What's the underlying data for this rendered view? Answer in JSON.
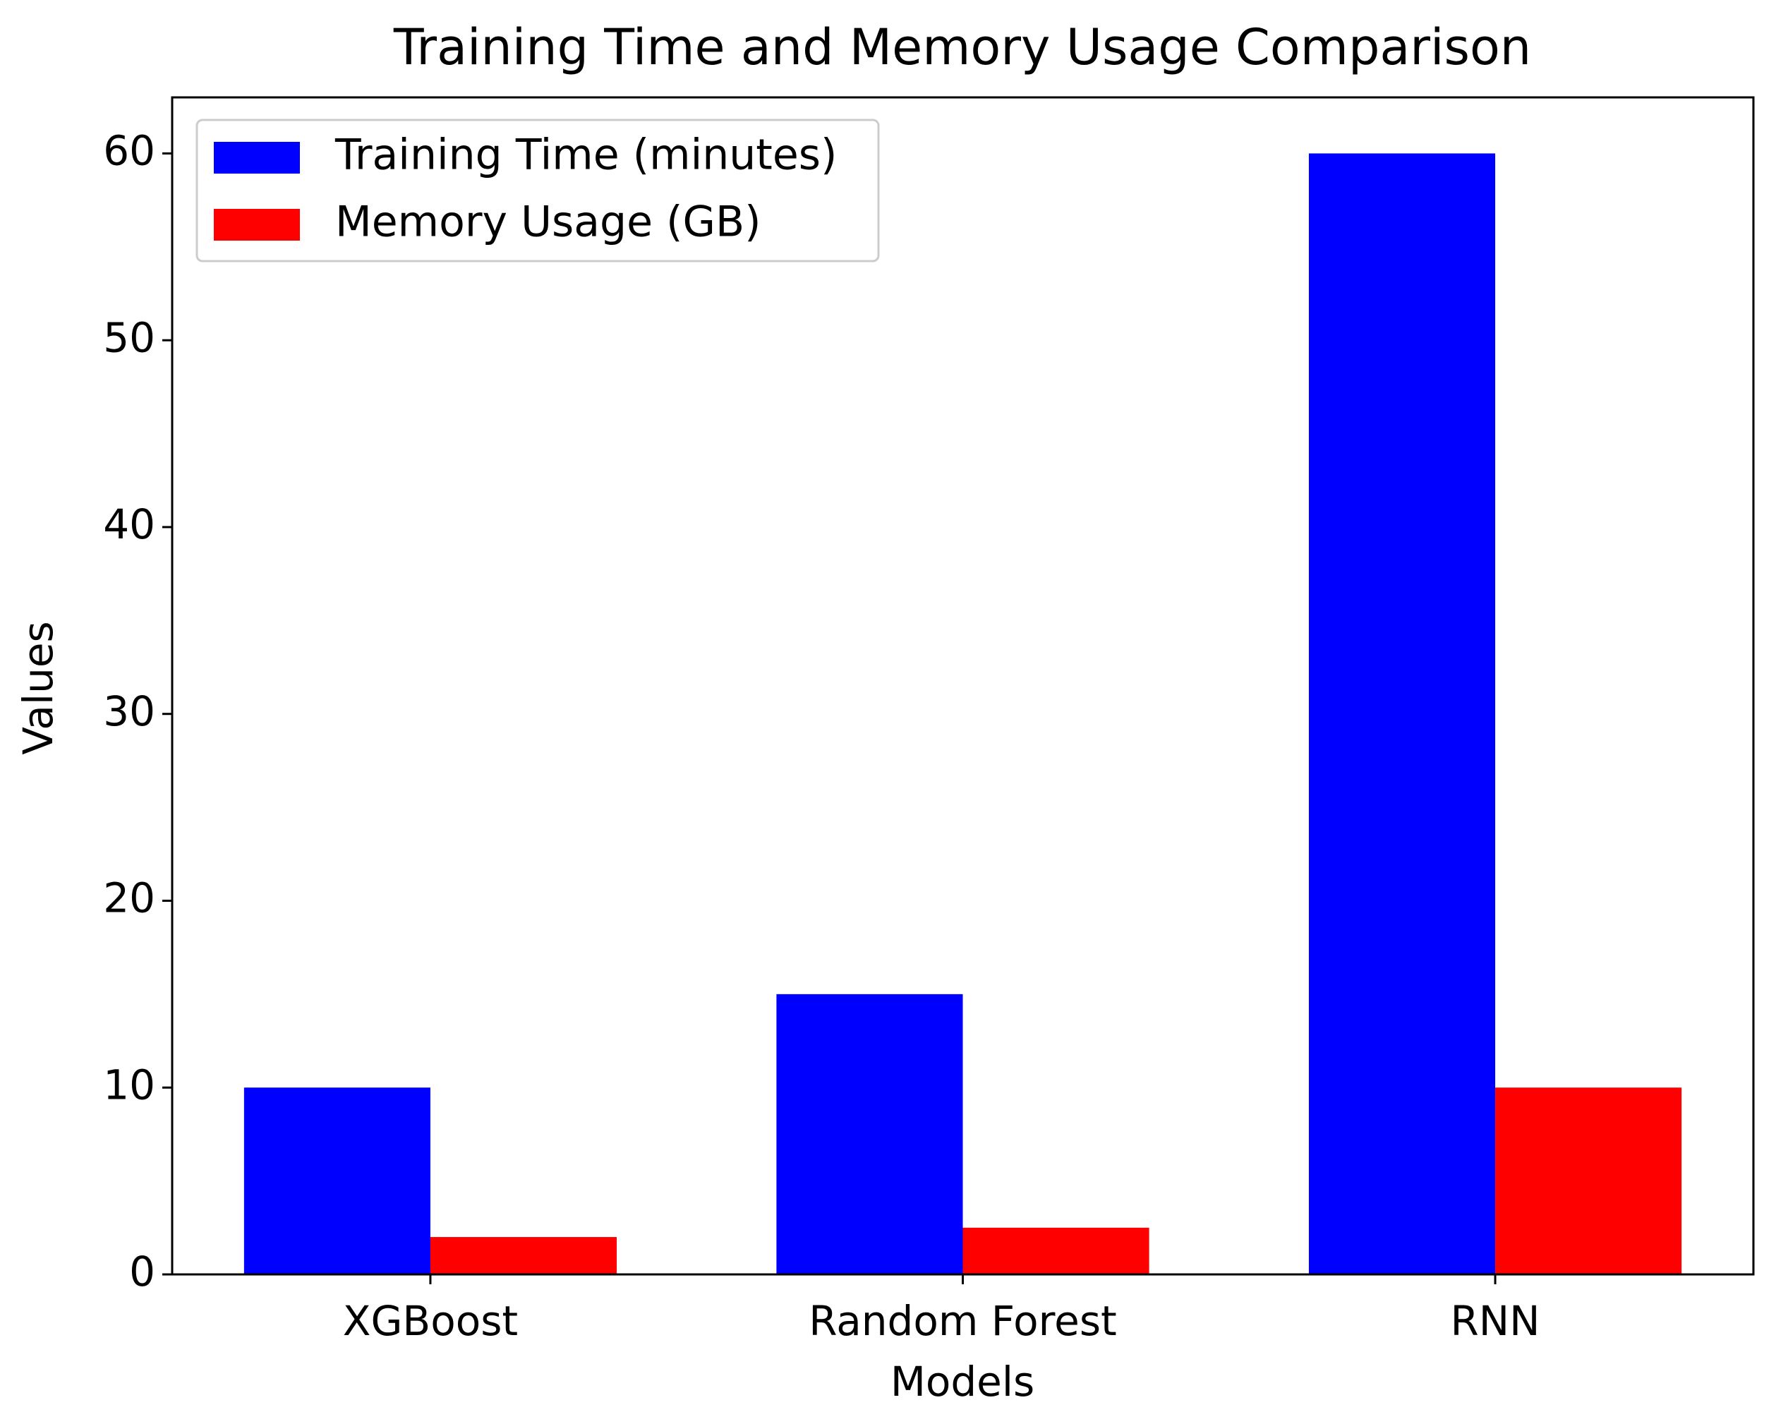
{
  "chart_data": {
    "type": "bar",
    "title": "Training Time and Memory Usage Comparison",
    "x_label": "Models",
    "y_label": "Values",
    "categories": [
      "XGBoost",
      "Random Forest",
      "RNN"
    ],
    "series": [
      {
        "name": "Training Time (minutes)",
        "color": "#0000ff",
        "values": [
          10,
          15,
          60
        ]
      },
      {
        "name": "Memory Usage (GB)",
        "color": "#ff0000",
        "values": [
          2,
          2.5,
          10
        ]
      }
    ],
    "ylim": [
      0,
      63
    ],
    "yticks": [
      0,
      10,
      20,
      30,
      40,
      50,
      60
    ],
    "grid": false,
    "legend": "upper left"
  }
}
